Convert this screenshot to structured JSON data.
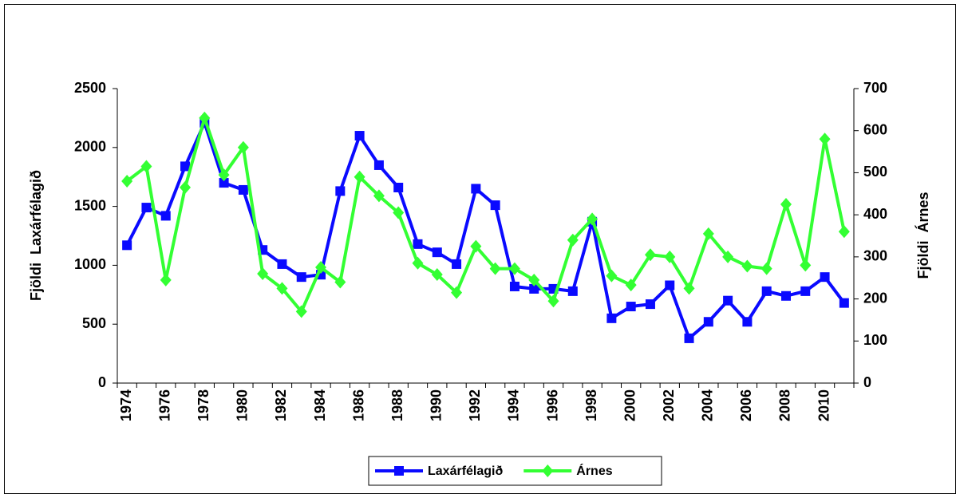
{
  "chart_data": {
    "type": "line",
    "categories": [
      "1974",
      null,
      "1976",
      null,
      "1978",
      null,
      "1980",
      null,
      "1982",
      null,
      "1984",
      null,
      "1986",
      null,
      "1988",
      null,
      "1990",
      null,
      "1992",
      null,
      "1994",
      null,
      "1996",
      null,
      "1998",
      null,
      "2000",
      null,
      "2002",
      null,
      "2004",
      null,
      "2006",
      null,
      "2008",
      null,
      "2010",
      null
    ],
    "y_label": "Fjöldi  Laxárfélagið",
    "y2_label": "Fjöldi  Árnes",
    "ylim": [
      0,
      2500
    ],
    "yticks": [
      0,
      500,
      1000,
      1500,
      2000,
      2500
    ],
    "y2lim": [
      0,
      700
    ],
    "y2ticks": [
      0,
      100,
      200,
      300,
      400,
      500,
      600,
      700
    ],
    "legend": "bottom",
    "series": [
      {
        "name": "Laxárfélagið",
        "color": "#0a0aff",
        "marker": "square",
        "values": [
          1170,
          1490,
          1420,
          1840,
          2210,
          1700,
          1640,
          1130,
          1010,
          900,
          920,
          1630,
          2100,
          1850,
          1660,
          1180,
          1110,
          1010,
          1650,
          1510,
          820,
          800,
          800,
          780,
          1370,
          550,
          650,
          670,
          830,
          380,
          520,
          700,
          520,
          780,
          740,
          780,
          900,
          680
        ]
      },
      {
        "name": "Árnes",
        "color": "#33ff33",
        "marker": "diamond",
        "axis": "y2",
        "values": [
          480,
          515,
          245,
          465,
          630,
          495,
          560,
          260,
          225,
          170,
          275,
          240,
          490,
          445,
          405,
          285,
          258,
          215,
          325,
          272,
          272,
          245,
          195,
          340,
          390,
          255,
          233,
          305,
          300,
          225,
          355,
          300,
          278,
          272,
          425,
          280,
          580,
          360
        ]
      }
    ]
  }
}
